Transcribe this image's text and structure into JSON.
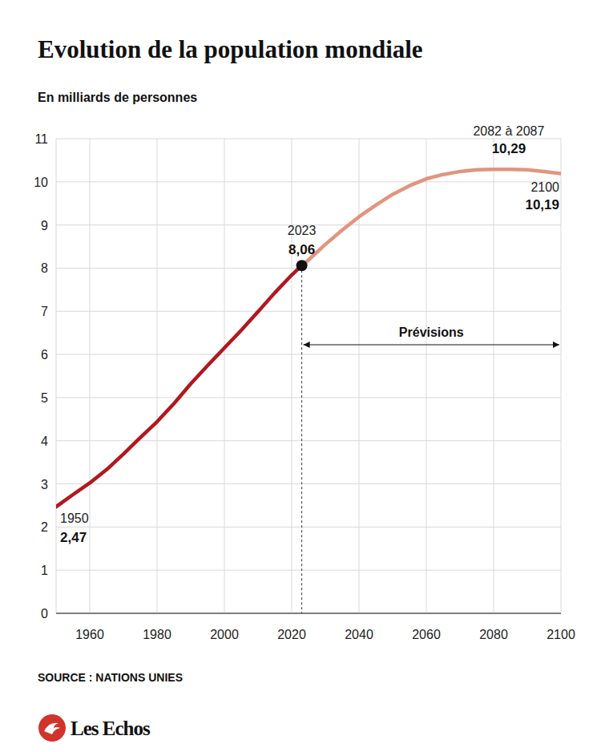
{
  "chart_data": {
    "type": "line",
    "title": "Evolution de la population mondiale",
    "subtitle": "En milliards de personnes",
    "source": "SOURCE : NATIONS UNIES",
    "brand": "Les Echos",
    "x": [
      1950,
      1955,
      1960,
      1965,
      1970,
      1975,
      1980,
      1985,
      1990,
      1995,
      2000,
      2005,
      2010,
      2015,
      2020,
      2023,
      2025,
      2030,
      2035,
      2040,
      2045,
      2050,
      2055,
      2060,
      2065,
      2070,
      2075,
      2080,
      2085,
      2090,
      2095,
      2100
    ],
    "series": [
      {
        "color": "#b3171f",
        "line_style": "solid",
        "values": [
          2.47,
          2.75,
          3.02,
          3.33,
          3.69,
          4.07,
          4.44,
          4.86,
          5.32,
          5.74,
          6.15,
          6.56,
          6.99,
          7.43,
          7.84,
          8.06,
          null,
          null,
          null,
          null,
          null,
          null,
          null,
          null,
          null,
          null,
          null,
          null,
          null,
          null,
          null,
          null
        ]
      },
      {
        "color": "#e1957f",
        "line_style": "solid",
        "values": [
          null,
          null,
          null,
          null,
          null,
          null,
          null,
          null,
          null,
          null,
          null,
          null,
          null,
          null,
          null,
          8.06,
          8.19,
          8.55,
          8.88,
          9.19,
          9.46,
          9.71,
          9.91,
          10.07,
          10.17,
          10.24,
          10.28,
          10.29,
          10.29,
          10.28,
          10.24,
          10.19
        ]
      }
    ],
    "xlim": [
      1950,
      2100
    ],
    "ylim": [
      0,
      11
    ],
    "xticks": [
      1960,
      1980,
      2000,
      2020,
      2040,
      2060,
      2080,
      2100
    ],
    "yticks": [
      0,
      1,
      2,
      3,
      4,
      5,
      6,
      7,
      8,
      9,
      10,
      11
    ],
    "grid": true,
    "annotations": [
      {
        "text": "1950",
        "x": 1950,
        "value": 2.47,
        "value_label": "2,47"
      },
      {
        "text": "2023",
        "x": 2023,
        "value": 8.06,
        "value_label": "8,06",
        "marker": "circle"
      },
      {
        "text": "2082 à 2087",
        "x": [
          2082,
          2087
        ],
        "value": 10.29,
        "value_label": "10,29"
      },
      {
        "text": "2100",
        "x": 2100,
        "value": 10.19,
        "value_label": "10,19"
      },
      {
        "text": "Prévisions",
        "x": [
          2023,
          2100
        ]
      }
    ]
  }
}
